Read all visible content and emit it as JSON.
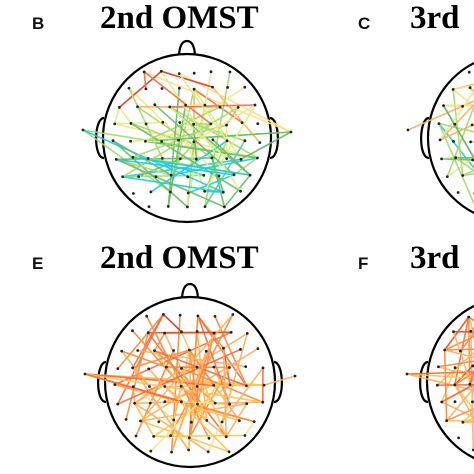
{
  "panels": [
    {
      "letter": "B",
      "title": "2nd OMST",
      "palette": "mixed"
    },
    {
      "letter": "C",
      "title": "3rd",
      "palette": "mixed"
    },
    {
      "letter": "E",
      "title": "2nd OMST",
      "palette": "warm"
    },
    {
      "letter": "F",
      "title": "3rd",
      "palette": "warm"
    }
  ],
  "colors": {
    "outline": "#000000",
    "node": "#222222",
    "edge_palette_mixed": [
      "#d7191c",
      "#e8341c",
      "#f46d43",
      "#fdae61",
      "#fee08b",
      "#d9ef8b",
      "#a6d96a",
      "#66bd63",
      "#1ecbe1",
      "#5ec8a0"
    ],
    "edge_palette_warm": [
      "#d7191c",
      "#e0301b",
      "#e8531f",
      "#f46d43",
      "#fa8c3c",
      "#fdae61",
      "#fec44f",
      "#fee08b"
    ]
  }
}
